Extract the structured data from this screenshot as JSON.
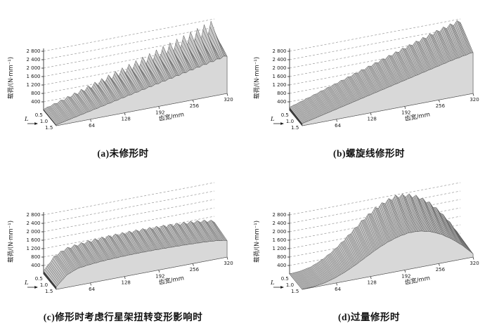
{
  "colors": {
    "background": "#ffffff",
    "text": "#1a1a1a",
    "axis": "#333333",
    "grid": "#999999",
    "surface": "#c9c9c9",
    "mesh": "#4a4a4a",
    "front_wall": "#d8d8d8",
    "left_cap": "#3c3c3c",
    "right_cap": "#b2b2b2"
  },
  "chart_data": [
    {
      "type": "surface",
      "caption": "(a)未修形时",
      "x_axis": {
        "label": "齿宽/mm",
        "ticks": [
          64,
          128,
          192,
          256,
          320
        ],
        "range": [
          0,
          320
        ]
      },
      "y_axis": {
        "label": "L",
        "ticks": [
          "0.5",
          "1.0",
          "1.5"
        ],
        "range": [
          0.5,
          1.5
        ]
      },
      "z_axis": {
        "label": "载荷/(N·mm⁻¹)",
        "ticks": [
          400,
          800,
          1200,
          1600,
          2000,
          2400,
          2800
        ],
        "tick_labels": [
          "400",
          "800",
          "1 200",
          "1 600",
          "2 000",
          "2 400",
          "2 800"
        ],
        "range": [
          0,
          3000
        ]
      },
      "grid": "dashed",
      "surface": {
        "profile_x_mm": [
          0,
          20,
          40,
          60,
          80,
          100,
          120,
          140,
          160,
          180,
          200,
          220,
          240,
          260,
          280,
          300,
          320
        ],
        "profile_load": [
          60,
          230,
          400,
          570,
          740,
          910,
          1080,
          1250,
          1420,
          1590,
          1760,
          1930,
          2100,
          2270,
          2440,
          2610,
          2780
        ],
        "ripple_fraction": 0.26,
        "ripple_count": 25,
        "depth_falloff": 0.34
      }
    },
    {
      "type": "surface",
      "caption": "(b)螺旋线修形时",
      "x_axis": {
        "label": "齿宽/mm",
        "ticks": [
          64,
          128,
          192,
          256,
          320
        ],
        "range": [
          0,
          320
        ]
      },
      "y_axis": {
        "label": "L",
        "ticks": [
          "0.5",
          "1.0",
          "1.5"
        ],
        "range": [
          0.5,
          1.5
        ]
      },
      "z_axis": {
        "label": "载荷/(N·mm⁻¹)",
        "ticks": [
          400,
          800,
          1200,
          1600,
          2000,
          2400,
          2800
        ],
        "tick_labels": [
          "400",
          "800",
          "1 200",
          "1 600",
          "2 000",
          "2 400",
          "2 800"
        ],
        "range": [
          0,
          3000
        ]
      },
      "grid": "dashed",
      "surface": {
        "profile_x_mm": [
          0,
          20,
          40,
          60,
          80,
          100,
          120,
          140,
          160,
          180,
          200,
          220,
          240,
          260,
          280,
          300,
          320
        ],
        "profile_load": [
          150,
          310,
          480,
          650,
          820,
          990,
          1160,
          1330,
          1500,
          1670,
          1840,
          2010,
          2180,
          2350,
          2520,
          2660,
          2800
        ],
        "ripple_fraction": 0.06,
        "ripple_count": 25,
        "depth_falloff": 0.3
      }
    },
    {
      "type": "surface",
      "caption": "(c)修形时考虑行星架扭转变形影响时",
      "x_axis": {
        "label": "齿宽/mm",
        "ticks": [
          64,
          128,
          192,
          256,
          320
        ],
        "range": [
          0,
          320
        ]
      },
      "y_axis": {
        "label": "L",
        "ticks": [
          "0.5",
          "1.0",
          "1.5"
        ],
        "range": [
          0.5,
          1.5
        ]
      },
      "z_axis": {
        "label": "载荷/(N·mm⁻¹)",
        "ticks": [
          400,
          800,
          1200,
          1600,
          2000,
          2400,
          2800
        ],
        "tick_labels": [
          "400",
          "800",
          "1 200",
          "1 600",
          "2 000",
          "2 400",
          "2 800"
        ],
        "range": [
          0,
          3000
        ]
      },
      "grid": "dashed",
      "surface": {
        "profile_x_mm": [
          0,
          20,
          40,
          60,
          80,
          100,
          120,
          140,
          160,
          180,
          200,
          220,
          240,
          260,
          280,
          300,
          320
        ],
        "profile_load": [
          150,
          760,
          1030,
          1120,
          1180,
          1220,
          1245,
          1262,
          1270,
          1270,
          1260,
          1248,
          1230,
          1205,
          1175,
          1125,
          1020
        ],
        "ripple_fraction": 0.1,
        "ripple_count": 25,
        "depth_falloff": 0.22
      }
    },
    {
      "type": "surface",
      "caption": "(d)过量修形时",
      "x_axis": {
        "label": "齿宽/mm",
        "ticks": [
          64,
          128,
          192,
          256,
          320
        ],
        "range": [
          0,
          320
        ]
      },
      "y_axis": {
        "label": "L",
        "ticks": [
          "0.5",
          "1.0",
          "1.5"
        ],
        "range": [
          0.5,
          1.5
        ]
      },
      "z_axis": {
        "label": "载荷/(N·mm⁻¹)",
        "ticks": [
          400,
          800,
          1200,
          1600,
          2000,
          2400,
          2800
        ],
        "tick_labels": [
          "400",
          "800",
          "1 200",
          "1 600",
          "2 000",
          "2 400",
          "2 800"
        ],
        "range": [
          0,
          3000
        ]
      },
      "grid": "dashed",
      "surface": {
        "profile_x_mm": [
          0,
          20,
          40,
          60,
          80,
          100,
          120,
          140,
          160,
          180,
          200,
          220,
          240,
          260,
          280,
          300,
          320
        ],
        "profile_load": [
          0,
          40,
          150,
          380,
          700,
          1100,
          1560,
          2010,
          2380,
          2650,
          2800,
          2770,
          2580,
          2220,
          1700,
          1050,
          250
        ],
        "ripple_fraction": 0.06,
        "ripple_count": 25,
        "depth_falloff": 0.38
      }
    }
  ]
}
